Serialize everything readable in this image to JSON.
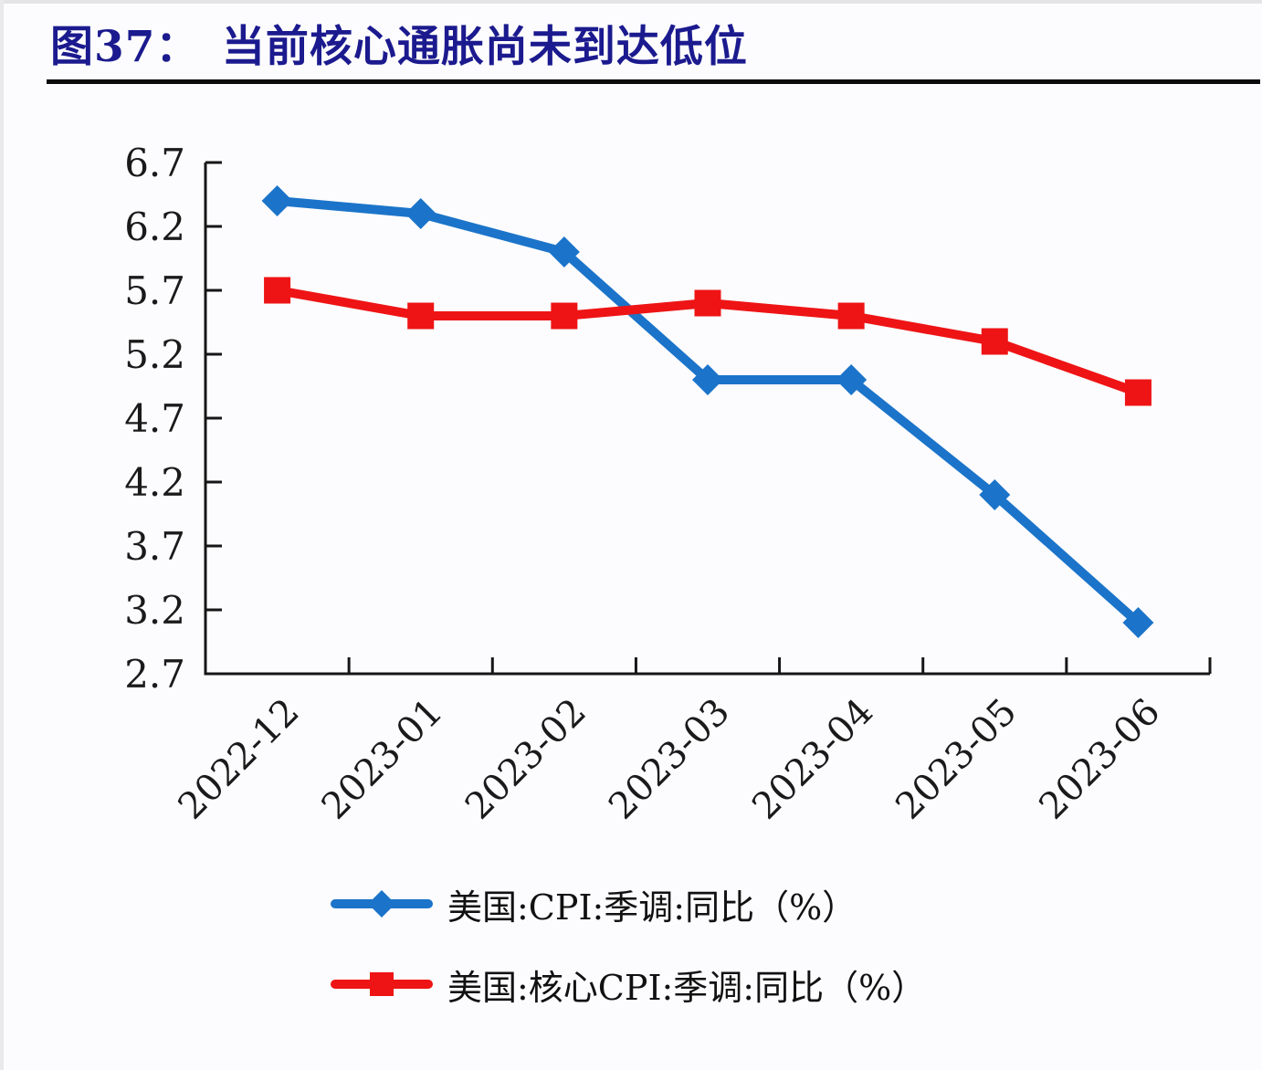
{
  "page": {
    "background": "#fcfcfe"
  },
  "header": {
    "title": "图37：　当前核心通胀尚未到达低位",
    "title_color": "#1b1a8e"
  },
  "chart_data": {
    "type": "line",
    "categories": [
      "2022-12",
      "2023-01",
      "2023-02",
      "2023-03",
      "2023-04",
      "2023-05",
      "2023-06"
    ],
    "series": [
      {
        "name": "美国:CPI:季调:同比（%）",
        "color": "#1b74c9",
        "marker": "diamond",
        "values": [
          6.4,
          6.3,
          6.0,
          5.0,
          5.0,
          4.1,
          3.1
        ]
      },
      {
        "name": "美国:核心CPI:季调:同比（%）",
        "color": "#ee1415",
        "marker": "square",
        "values": [
          5.7,
          5.5,
          5.5,
          5.6,
          5.5,
          5.3,
          4.9
        ]
      }
    ],
    "ylim": [
      2.7,
      6.7
    ],
    "ytick_step": 0.5,
    "ytick_labels": [
      "6.7",
      "6.2",
      "5.7",
      "5.2",
      "4.7",
      "4.2",
      "3.7",
      "3.2",
      "2.7"
    ],
    "xlabel": "",
    "ylabel": "",
    "grid": false,
    "legend_position": "bottom-left",
    "axis_color": "#161616"
  }
}
